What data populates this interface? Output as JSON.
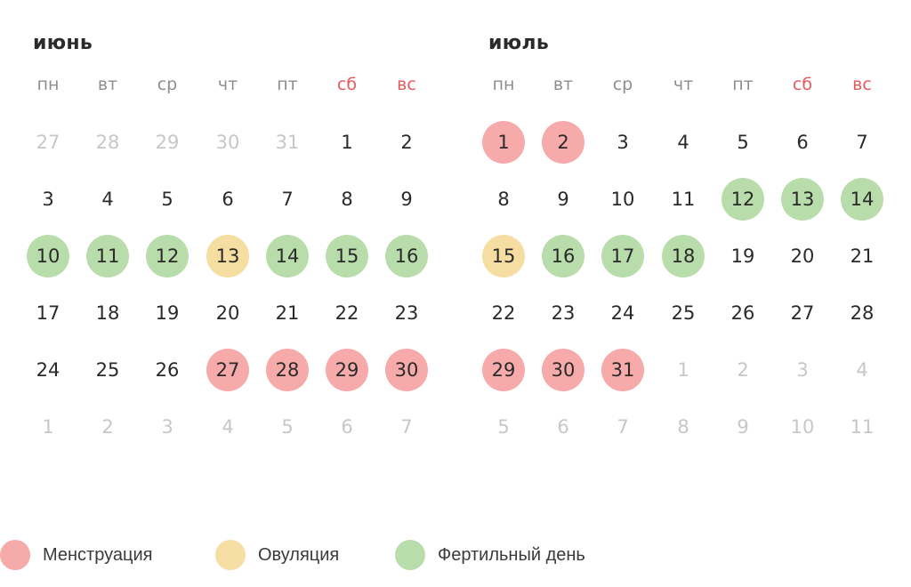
{
  "colors": {
    "menstruation": "#f7aaaa",
    "ovulation": "#f6dea3",
    "fertile": "#b8dcaa",
    "weekend_header": "#e45a5a"
  },
  "weekdays": [
    "пн",
    "вт",
    "ср",
    "чт",
    "пт",
    "сб",
    "вс"
  ],
  "months": [
    {
      "title": "июнь",
      "weeks": [
        [
          {
            "d": "27",
            "t": "muted"
          },
          {
            "d": "28",
            "t": "muted"
          },
          {
            "d": "29",
            "t": "muted"
          },
          {
            "d": "30",
            "t": "muted"
          },
          {
            "d": "31",
            "t": "muted"
          },
          {
            "d": "1",
            "t": ""
          },
          {
            "d": "2",
            "t": ""
          }
        ],
        [
          {
            "d": "3",
            "t": ""
          },
          {
            "d": "4",
            "t": ""
          },
          {
            "d": "5",
            "t": ""
          },
          {
            "d": "6",
            "t": ""
          },
          {
            "d": "7",
            "t": ""
          },
          {
            "d": "8",
            "t": ""
          },
          {
            "d": "9",
            "t": ""
          }
        ],
        [
          {
            "d": "10",
            "t": "fertile"
          },
          {
            "d": "11",
            "t": "fertile"
          },
          {
            "d": "12",
            "t": "fertile"
          },
          {
            "d": "13",
            "t": "ovulation"
          },
          {
            "d": "14",
            "t": "fertile"
          },
          {
            "d": "15",
            "t": "fertile"
          },
          {
            "d": "16",
            "t": "fertile"
          }
        ],
        [
          {
            "d": "17",
            "t": ""
          },
          {
            "d": "18",
            "t": ""
          },
          {
            "d": "19",
            "t": ""
          },
          {
            "d": "20",
            "t": ""
          },
          {
            "d": "21",
            "t": ""
          },
          {
            "d": "22",
            "t": ""
          },
          {
            "d": "23",
            "t": ""
          }
        ],
        [
          {
            "d": "24",
            "t": ""
          },
          {
            "d": "25",
            "t": ""
          },
          {
            "d": "26",
            "t": ""
          },
          {
            "d": "27",
            "t": "menstruation"
          },
          {
            "d": "28",
            "t": "menstruation"
          },
          {
            "d": "29",
            "t": "menstruation"
          },
          {
            "d": "30",
            "t": "menstruation"
          }
        ],
        [
          {
            "d": "1",
            "t": "muted"
          },
          {
            "d": "2",
            "t": "muted"
          },
          {
            "d": "3",
            "t": "muted"
          },
          {
            "d": "4",
            "t": "muted"
          },
          {
            "d": "5",
            "t": "muted"
          },
          {
            "d": "6",
            "t": "muted"
          },
          {
            "d": "7",
            "t": "muted"
          }
        ]
      ]
    },
    {
      "title": "июль",
      "weeks": [
        [
          {
            "d": "1",
            "t": "menstruation"
          },
          {
            "d": "2",
            "t": "menstruation"
          },
          {
            "d": "3",
            "t": ""
          },
          {
            "d": "4",
            "t": ""
          },
          {
            "d": "5",
            "t": ""
          },
          {
            "d": "6",
            "t": ""
          },
          {
            "d": "7",
            "t": ""
          }
        ],
        [
          {
            "d": "8",
            "t": ""
          },
          {
            "d": "9",
            "t": ""
          },
          {
            "d": "10",
            "t": ""
          },
          {
            "d": "11",
            "t": ""
          },
          {
            "d": "12",
            "t": "fertile"
          },
          {
            "d": "13",
            "t": "fertile"
          },
          {
            "d": "14",
            "t": "fertile"
          }
        ],
        [
          {
            "d": "15",
            "t": "ovulation"
          },
          {
            "d": "16",
            "t": "fertile"
          },
          {
            "d": "17",
            "t": "fertile"
          },
          {
            "d": "18",
            "t": "fertile"
          },
          {
            "d": "19",
            "t": ""
          },
          {
            "d": "20",
            "t": ""
          },
          {
            "d": "21",
            "t": ""
          }
        ],
        [
          {
            "d": "22",
            "t": ""
          },
          {
            "d": "23",
            "t": ""
          },
          {
            "d": "24",
            "t": ""
          },
          {
            "d": "25",
            "t": ""
          },
          {
            "d": "26",
            "t": ""
          },
          {
            "d": "27",
            "t": ""
          },
          {
            "d": "28",
            "t": ""
          }
        ],
        [
          {
            "d": "29",
            "t": "menstruation"
          },
          {
            "d": "30",
            "t": "menstruation"
          },
          {
            "d": "31",
            "t": "menstruation"
          },
          {
            "d": "1",
            "t": "muted"
          },
          {
            "d": "2",
            "t": "muted"
          },
          {
            "d": "3",
            "t": "muted"
          },
          {
            "d": "4",
            "t": "muted"
          }
        ],
        [
          {
            "d": "5",
            "t": "muted"
          },
          {
            "d": "6",
            "t": "muted"
          },
          {
            "d": "7",
            "t": "muted"
          },
          {
            "d": "8",
            "t": "muted"
          },
          {
            "d": "9",
            "t": "muted"
          },
          {
            "d": "10",
            "t": "muted"
          },
          {
            "d": "11",
            "t": "muted"
          }
        ]
      ]
    }
  ],
  "legend": [
    {
      "label": "Менструация",
      "type": "menstruation"
    },
    {
      "label": "Овуляция",
      "type": "ovulation"
    },
    {
      "label": "Фертильный день",
      "type": "fertile"
    }
  ]
}
